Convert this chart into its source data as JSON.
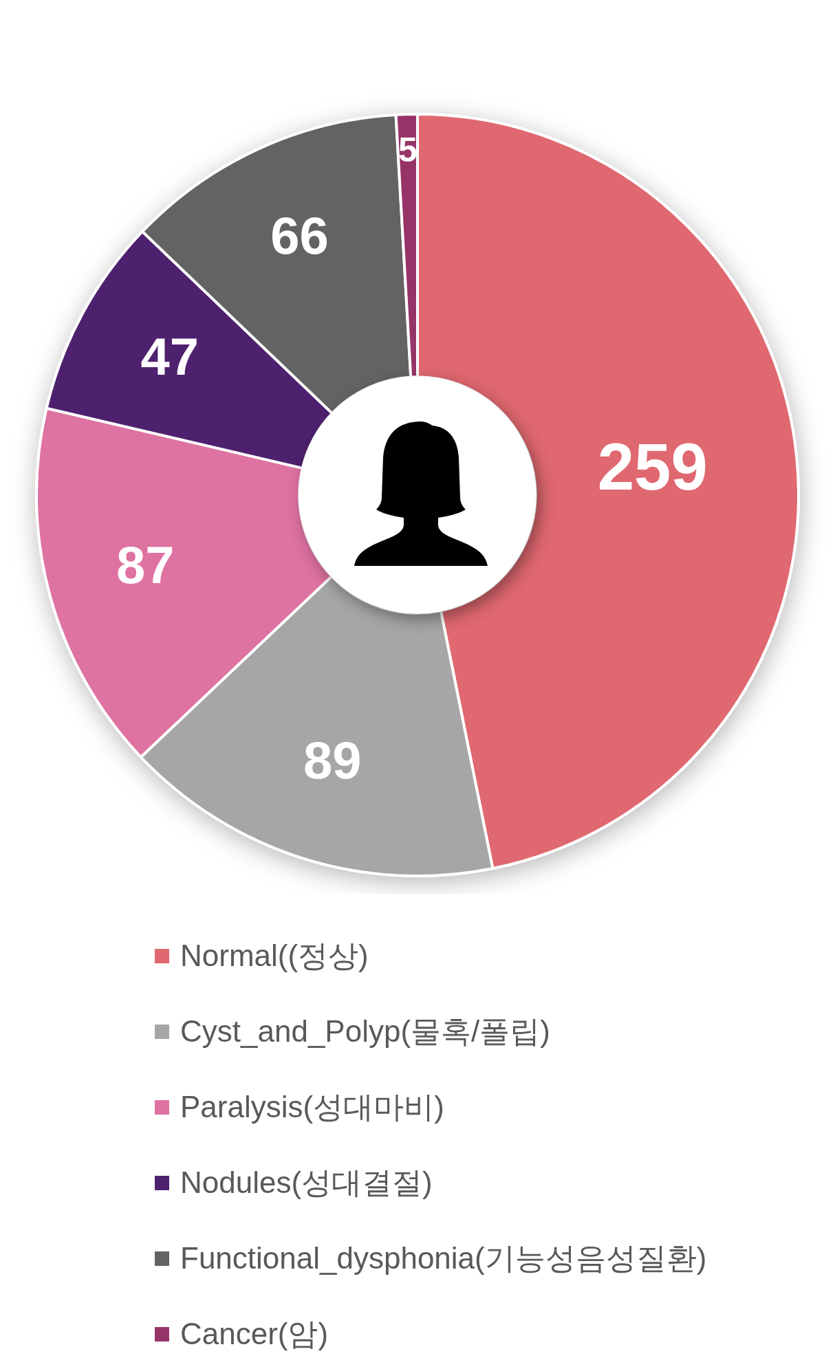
{
  "chart_data": {
    "type": "donut",
    "categories": [
      "Normal((정상)",
      "Cyst_and_Polyp(물혹/폴립)",
      "Paralysis(성대마비)",
      "Nodules(성대결절)",
      "Functional_dysphonia(기능성음성질환)",
      "Cancer(암)"
    ],
    "values": [
      259,
      89,
      87,
      47,
      66,
      5
    ],
    "colors": [
      "#e06870",
      "#a6a6a6",
      "#de72a1",
      "#4e216e",
      "#636363",
      "#963468"
    ],
    "data_labels": true,
    "legend": "bottom"
  }
}
